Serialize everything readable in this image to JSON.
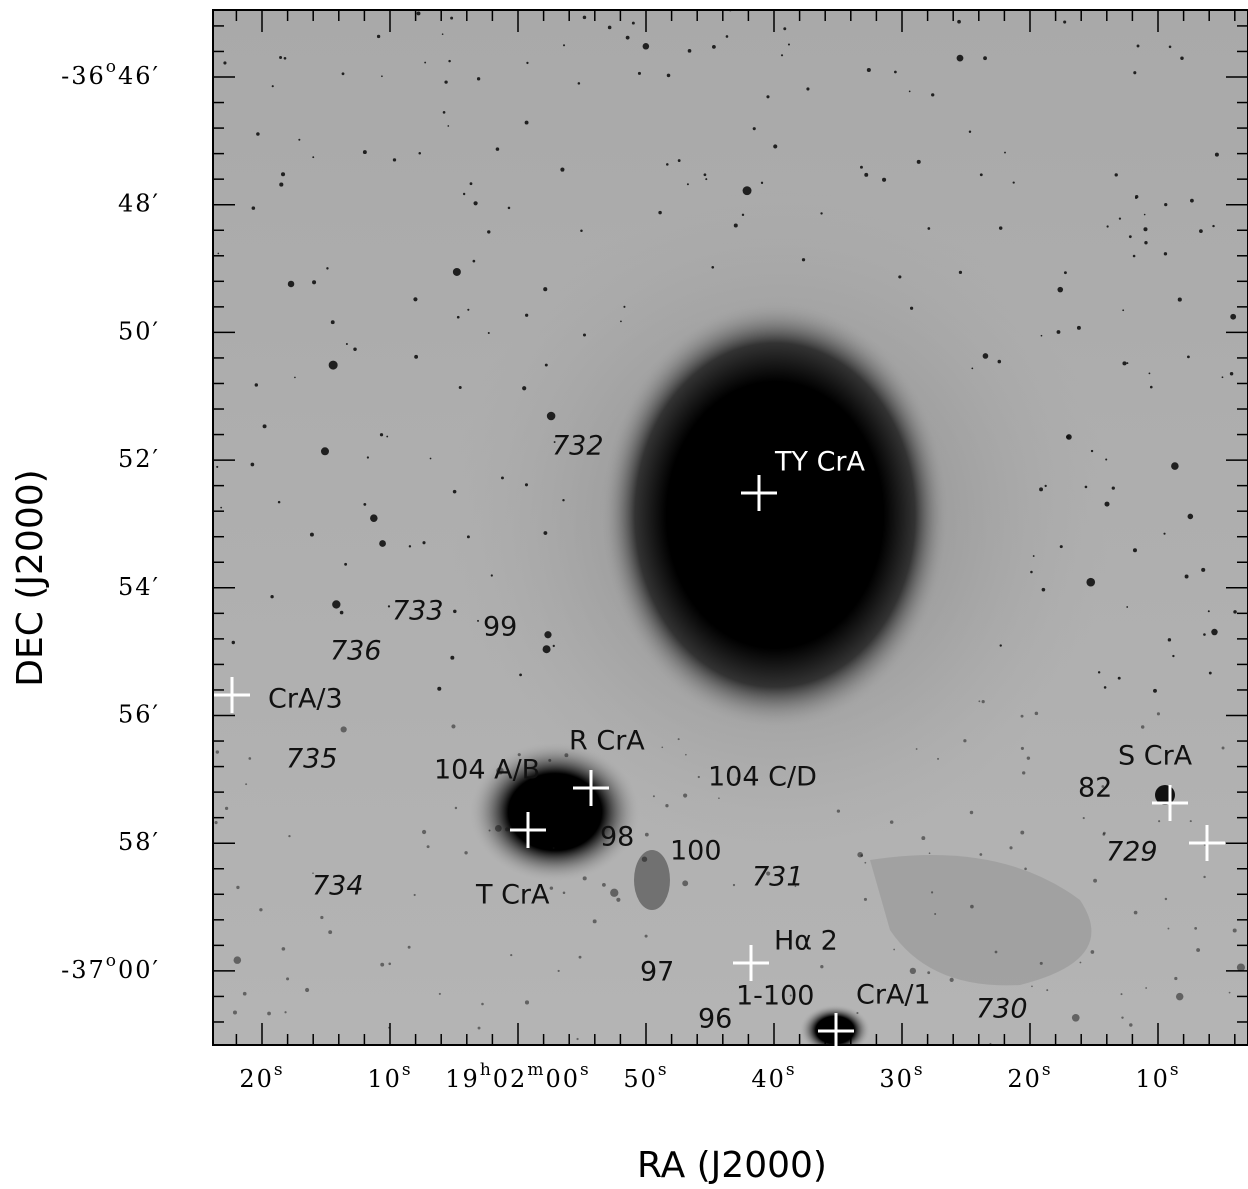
{
  "axes": {
    "x_label": "RA (J2000)",
    "y_label": "DEC (J2000)",
    "x_ticks": [
      [
        "20",
        "s"
      ],
      [
        "10",
        "s"
      ],
      [
        "19",
        "h",
        "02",
        "m",
        "00",
        "s"
      ],
      [
        "50",
        "s"
      ],
      [
        "40",
        "s"
      ],
      [
        "30",
        "s"
      ],
      [
        "20",
        "s"
      ],
      [
        "10",
        "s"
      ]
    ],
    "y_ticks": [
      [
        "-36",
        "o",
        "46′"
      ],
      [
        "48′"
      ],
      [
        "50′"
      ],
      [
        "52′"
      ],
      [
        "54′"
      ],
      [
        "56′"
      ],
      [
        "58′"
      ],
      [
        "-37",
        "o",
        "00′"
      ]
    ]
  },
  "annotations": [
    {
      "text": "TY CrA"
    },
    {
      "text": "732"
    },
    {
      "text": "733"
    },
    {
      "text": "99"
    },
    {
      "text": "736"
    },
    {
      "text": "CrA/3"
    },
    {
      "text": "R CrA"
    },
    {
      "text": "104 A/B"
    },
    {
      "text": "104 C/D"
    },
    {
      "text": "98"
    },
    {
      "text": "100"
    },
    {
      "text": "T CrA"
    },
    {
      "text": "734"
    },
    {
      "text": "735"
    },
    {
      "text": "731"
    },
    {
      "text": "Hα 2"
    },
    {
      "text": "97"
    },
    {
      "text": "1-100"
    },
    {
      "text": "CrA/1"
    },
    {
      "text": "96"
    },
    {
      "text": "730"
    },
    {
      "text": "S CrA"
    },
    {
      "text": "82"
    },
    {
      "text": "729"
    }
  ]
}
